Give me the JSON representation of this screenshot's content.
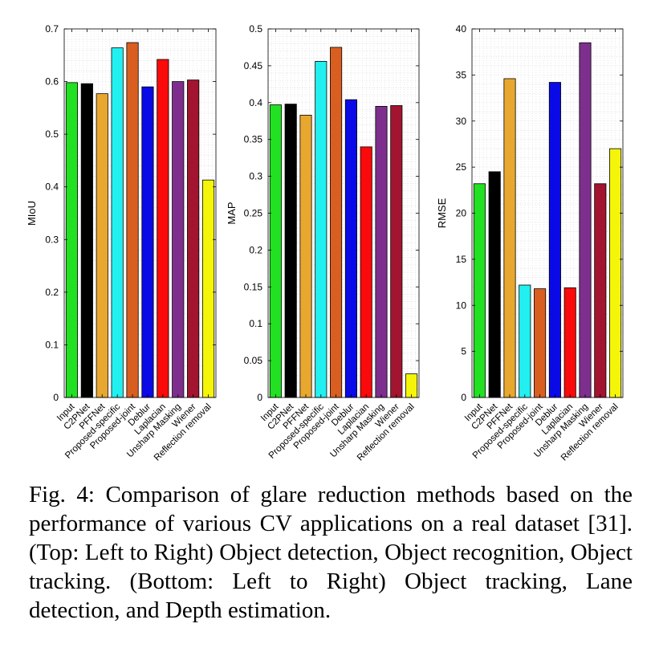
{
  "chart_data": [
    {
      "type": "bar",
      "ylabel": "MIoU",
      "ylim": [
        0,
        0.7
      ],
      "yticks": [
        "0",
        "0.1",
        "0.2",
        "0.3",
        "0.4",
        "0.5",
        "0.6",
        "0.7"
      ],
      "grid": true,
      "categories": [
        "Input",
        "C2PNet",
        "PFFNet",
        "Proposed-specific",
        "Proposed-joint",
        "Deblur",
        "Laplacian",
        "Unsharp Masking",
        "Wiener",
        "Reflection removal"
      ],
      "values": [
        0.598,
        0.596,
        0.577,
        0.664,
        0.674,
        0.59,
        0.642,
        0.6,
        0.603,
        0.413
      ]
    },
    {
      "type": "bar",
      "ylabel": "MAP",
      "ylim": [
        0,
        0.5
      ],
      "yticks": [
        "0",
        "0.05",
        "0.1",
        "0.15",
        "0.2",
        "0.25",
        "0.3",
        "0.35",
        "0.4",
        "0.45",
        "0.5"
      ],
      "grid": true,
      "categories": [
        "Input",
        "C2PNet",
        "PFFNet",
        "Proposed-specific",
        "Proposed-joint",
        "Deblur",
        "Laplacian",
        "Unsharp Masking",
        "Wiener",
        "Reflection removal"
      ],
      "values": [
        0.397,
        0.398,
        0.383,
        0.456,
        0.475,
        0.404,
        0.34,
        0.395,
        0.396,
        0.032
      ]
    },
    {
      "type": "bar",
      "ylabel": "RMSE",
      "ylim": [
        0,
        40
      ],
      "yticks": [
        "0",
        "5",
        "10",
        "15",
        "20",
        "25",
        "30",
        "35",
        "40"
      ],
      "grid": true,
      "categories": [
        "Input",
        "C2PNet",
        "PFFNet",
        "Proposed-specific",
        "Proposed-joint",
        "Deblur",
        "Laplacian",
        "Unsharp Masking",
        "Wiener",
        "Reflection removal"
      ],
      "values": [
        23.2,
        24.5,
        34.6,
        12.2,
        11.8,
        34.2,
        11.9,
        38.5,
        23.2,
        27.0
      ]
    }
  ],
  "bar_colors": [
    "#22e022",
    "#000000",
    "#e8a72f",
    "#22f0f0",
    "#d95f20",
    "#0a0ae6",
    "#fa0a0a",
    "#7e2f8e",
    "#a2142f",
    "#f5f50a"
  ],
  "caption": "Fig. 4: Comparison of glare reduction methods based on the performance of various CV applications on a real dataset [31]. (Top: Left to Right) Object detection, Object recognition, Object tracking. (Bottom: Left to Right) Object tracking, Lane detection, and Depth estimation."
}
